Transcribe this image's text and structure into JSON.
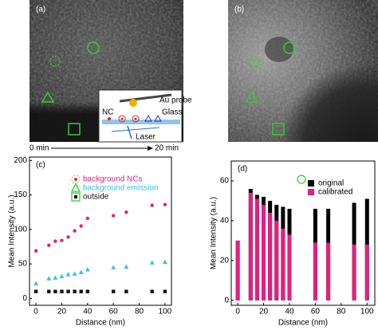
{
  "images": [
    {
      "label": "(a)"
    },
    {
      "label": "(b)"
    }
  ],
  "inset": {
    "probe": "Au probe",
    "glass": "Glass",
    "nc": "NC",
    "laser": "Laser"
  },
  "time_arrow": {
    "start": "0 min",
    "end": "20 min"
  },
  "chart_data": [
    {
      "type": "scatter",
      "panel_label": "(c)",
      "x_label": "Distance (nm)",
      "y_label": "Mean Intensity (a.u.)",
      "xlim": [
        -5,
        105
      ],
      "ylim": [
        -10,
        205
      ],
      "xticks": [
        0,
        20,
        40,
        60,
        80,
        100
      ],
      "yticks": [
        0,
        50,
        100,
        150,
        200
      ],
      "legend": "upper left",
      "x": [
        0,
        10,
        15,
        20,
        25,
        30,
        35,
        40,
        60,
        70,
        90,
        100
      ],
      "series": [
        {
          "name": "background NCs",
          "color": "#e3207f",
          "marker": "dashed-circle-dot",
          "values": [
            69,
            77,
            83,
            84,
            89,
            98,
            105,
            116,
            120,
            125,
            135,
            136
          ]
        },
        {
          "name": "background emission",
          "color": "#3cbfe8",
          "marker": "triangle",
          "values": [
            22,
            29,
            30,
            32,
            35,
            36,
            38,
            42,
            45,
            46,
            52,
            53
          ]
        },
        {
          "name": "outside",
          "color": "#111111",
          "marker": "square",
          "values": [
            10,
            10,
            10,
            10,
            10,
            10,
            10,
            10,
            10,
            10,
            10,
            10
          ]
        }
      ]
    },
    {
      "type": "bar",
      "panel_label": "(d)",
      "x_label": "Distance (nm)",
      "y_label": "Mean Intensity (a.u.)",
      "xlim": [
        -5,
        106
      ],
      "ylim": [
        -2.5,
        70
      ],
      "xticks": [
        0,
        20,
        40,
        60,
        80,
        100
      ],
      "yticks": [
        0,
        20,
        40,
        60
      ],
      "legend": "upper right",
      "x": [
        0,
        10,
        15,
        20,
        25,
        30,
        35,
        40,
        60,
        70,
        90,
        100
      ],
      "series": [
        {
          "name": "original",
          "color": "#000000",
          "values": [
            30,
            56,
            53,
            52,
            50,
            48,
            47,
            46,
            46,
            46,
            49,
            51
          ]
        },
        {
          "name": "calibrated",
          "color": "#e3207f",
          "values": [
            30,
            54,
            51,
            48,
            44,
            40,
            36,
            33,
            29,
            29,
            28,
            28
          ]
        }
      ]
    }
  ]
}
